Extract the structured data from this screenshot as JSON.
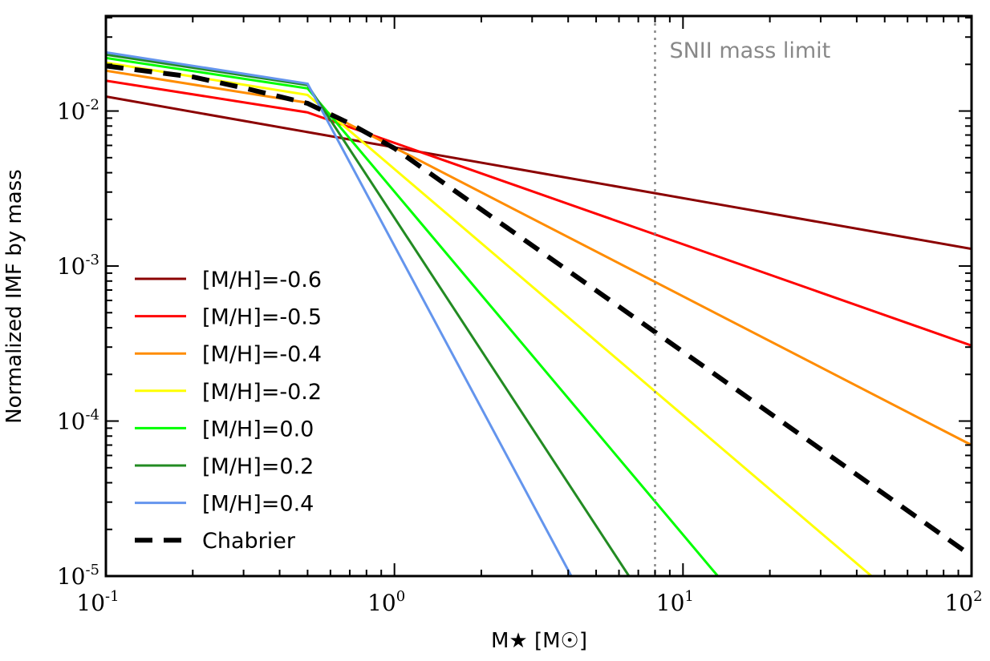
{
  "chart_data": {
    "type": "line",
    "title": "",
    "xlabel": "M★ [M☉]",
    "ylabel": "Normalized IMF by mass",
    "xscale": "log",
    "yscale": "log",
    "xlim": [
      0.1,
      100
    ],
    "ylim": [
      1e-05,
      0.041
    ],
    "x_ticks": [
      {
        "base": "10",
        "exp": "-1",
        "value": 0.1
      },
      {
        "base": "10",
        "exp": "0",
        "value": 1
      },
      {
        "base": "10",
        "exp": "1",
        "value": 10
      },
      {
        "base": "10",
        "exp": "2",
        "value": 100
      }
    ],
    "y_ticks": [
      {
        "base": "10",
        "exp": "-5",
        "value": 1e-05
      },
      {
        "base": "10",
        "exp": "-4",
        "value": 0.0001
      },
      {
        "base": "10",
        "exp": "-3",
        "value": 0.001
      },
      {
        "base": "10",
        "exp": "-2",
        "value": 0.01
      }
    ],
    "grid": false,
    "legend_placement": "lower-left",
    "annotations": [
      {
        "text": "SNII mass limit",
        "x": 8,
        "style": "vertical dotted line",
        "color": "#888888"
      }
    ],
    "series": [
      {
        "name": "[M/H]=-0.6",
        "color": "#8b0000",
        "dash": "solid",
        "points": [
          [
            0.1,
            0.0124
          ],
          [
            0.5,
            0.00731
          ],
          [
            100,
            0.00129
          ]
        ]
      },
      {
        "name": "[M/H]=-0.5",
        "color": "#ff0000",
        "dash": "solid",
        "points": [
          [
            0.1,
            0.0157
          ],
          [
            0.5,
            0.0098
          ],
          [
            100,
            0.000307
          ]
        ]
      },
      {
        "name": "[M/H]=-0.4",
        "color": "#ff8c00",
        "dash": "solid",
        "points": [
          [
            0.1,
            0.0182
          ],
          [
            0.5,
            0.0113
          ],
          [
            100,
            7e-05
          ]
        ]
      },
      {
        "name": "[M/H]=-0.2",
        "color": "#ffff00",
        "dash": "solid",
        "points": [
          [
            0.1,
            0.0205
          ],
          [
            0.5,
            0.0127
          ],
          [
            45,
            1e-05
          ]
        ]
      },
      {
        "name": "[M/H]=0.0",
        "color": "#00ff00",
        "dash": "solid",
        "points": [
          [
            0.1,
            0.022
          ],
          [
            0.5,
            0.014
          ],
          [
            13.2,
            1e-05
          ]
        ]
      },
      {
        "name": "[M/H]=0.2",
        "color": "#228b22",
        "dash": "solid",
        "points": [
          [
            0.1,
            0.0231
          ],
          [
            0.5,
            0.0147
          ],
          [
            6.5,
            1e-05
          ]
        ]
      },
      {
        "name": "[M/H]=0.4",
        "color": "#6495ed",
        "dash": "solid",
        "points": [
          [
            0.1,
            0.0239
          ],
          [
            0.5,
            0.015
          ],
          [
            4.1,
            1e-05
          ]
        ]
      },
      {
        "name": "Chabrier",
        "color": "#000000",
        "dash": "dashed",
        "points": [
          [
            0.1,
            0.0195
          ],
          [
            0.2,
            0.0166
          ],
          [
            0.3,
            0.0141
          ],
          [
            0.5,
            0.0112
          ],
          [
            0.7,
            0.0083
          ],
          [
            1,
            0.00575
          ],
          [
            10,
            0.00028
          ],
          [
            100,
            1.35e-05
          ]
        ]
      }
    ]
  }
}
